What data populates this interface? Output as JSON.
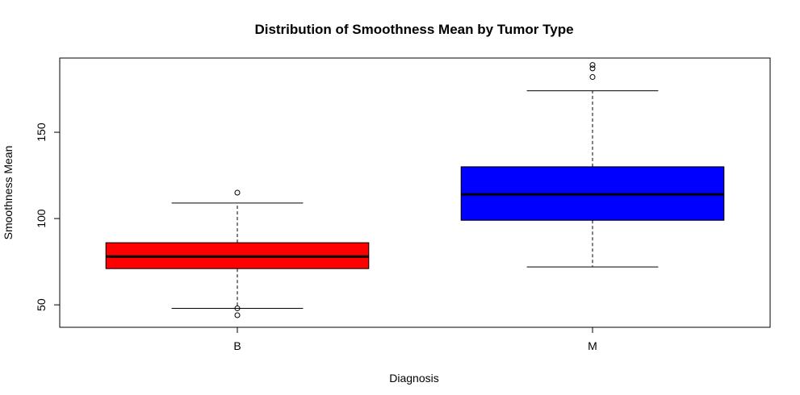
{
  "chart_data": {
    "type": "boxplot",
    "title": "Distribution of Smoothness Mean by Tumor Type",
    "xlabel": "Diagnosis",
    "ylabel": "Smoothness Mean",
    "ylim": [
      37,
      193
    ],
    "yticks": [
      50,
      100,
      150
    ],
    "grid": false,
    "legend": "none",
    "categories": [
      "B",
      "M"
    ],
    "boxes": [
      {
        "category": "B",
        "whisker_low": 48,
        "q1": 71,
        "median": 78,
        "q3": 86,
        "whisker_high": 109,
        "outliers": [
          44,
          48,
          115
        ],
        "color": "#ff0000"
      },
      {
        "category": "M",
        "whisker_low": 72,
        "q1": 99,
        "median": 114,
        "q3": 130,
        "whisker_high": 174,
        "outliers": [
          182,
          187,
          189
        ],
        "color": "#0000ff"
      }
    ]
  }
}
